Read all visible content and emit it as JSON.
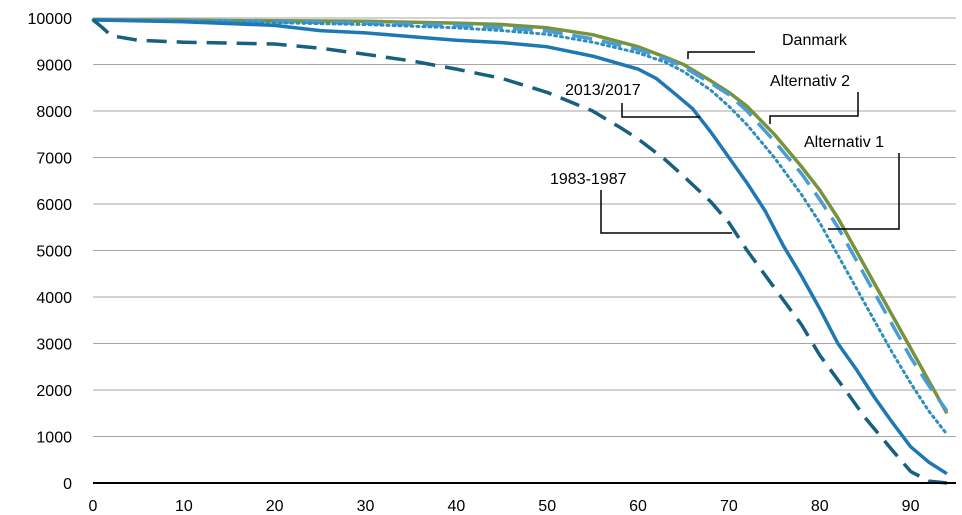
{
  "chart_data": {
    "type": "line",
    "title": "",
    "xlabel": "",
    "ylabel": "",
    "xlim": [
      0,
      95
    ],
    "ylim": [
      0,
      10000
    ],
    "x_ticks": [
      0,
      10,
      20,
      30,
      40,
      50,
      60,
      70,
      80,
      90
    ],
    "y_ticks": [
      0,
      1000,
      2000,
      3000,
      4000,
      5000,
      6000,
      7000,
      8000,
      9000,
      10000
    ],
    "x_tick_labels": [
      "0",
      "10",
      "20",
      "30",
      "40",
      "50",
      "60",
      "70",
      "80",
      "90"
    ],
    "y_tick_labels": [
      "0",
      "1000",
      "2000",
      "3000",
      "4000",
      "5000",
      "6000",
      "7000",
      "8000",
      "9000",
      "10000"
    ],
    "grid": "horizontal",
    "legend": "none",
    "series": [
      {
        "name": "Danmark",
        "color": "#77933c",
        "style": "solid",
        "x": [
          0,
          10,
          20,
          30,
          40,
          45,
          50,
          55,
          60,
          63,
          65,
          68,
          70,
          72,
          75,
          78,
          80,
          82,
          84,
          86,
          88,
          90,
          92,
          94
        ],
        "y": [
          9960,
          9950,
          9940,
          9930,
          9890,
          9860,
          9790,
          9640,
          9380,
          9160,
          9000,
          8650,
          8400,
          8100,
          7500,
          6800,
          6300,
          5700,
          5000,
          4300,
          3600,
          2900,
          2200,
          1500
        ]
      },
      {
        "name": "Alternativ 2",
        "color": "#4a9bd6",
        "style": "dashed",
        "x": [
          0,
          10,
          20,
          30,
          40,
          45,
          50,
          55,
          60,
          63,
          65,
          68,
          70,
          72,
          75,
          78,
          80,
          82,
          84,
          86,
          88,
          90,
          92,
          94
        ],
        "y": [
          9960,
          9940,
          9920,
          9890,
          9840,
          9790,
          9720,
          9550,
          9320,
          9120,
          8950,
          8600,
          8350,
          8000,
          7350,
          6650,
          6100,
          5500,
          4800,
          4100,
          3400,
          2700,
          2100,
          1550
        ]
      },
      {
        "name": "Alternativ 1",
        "color": "#2e8fbd",
        "style": "dotted",
        "x": [
          0,
          10,
          20,
          30,
          40,
          45,
          50,
          55,
          60,
          63,
          65,
          68,
          70,
          72,
          75,
          78,
          80,
          82,
          84,
          86,
          88,
          90,
          92,
          94
        ],
        "y": [
          9960,
          9930,
          9900,
          9860,
          9790,
          9730,
          9650,
          9480,
          9250,
          9050,
          8850,
          8450,
          8100,
          7700,
          7000,
          6200,
          5600,
          4900,
          4200,
          3500,
          2800,
          2150,
          1550,
          1050
        ]
      },
      {
        "name": "2013/2017",
        "color": "#1f78b4",
        "style": "solid",
        "x": [
          0,
          10,
          20,
          25,
          30,
          35,
          40,
          45,
          50,
          55,
          60,
          62,
          64,
          66,
          68,
          70,
          72,
          74,
          76,
          78,
          80,
          82,
          84,
          86,
          88,
          90,
          92,
          94
        ],
        "y": [
          9960,
          9920,
          9840,
          9730,
          9680,
          9600,
          9520,
          9470,
          9380,
          9180,
          8900,
          8700,
          8380,
          8050,
          7550,
          7000,
          6450,
          5850,
          5100,
          4450,
          3750,
          3000,
          2450,
          1850,
          1300,
          780,
          450,
          200
        ]
      },
      {
        "name": "1983-1987",
        "color": "#17607f",
        "style": "dashed",
        "x": [
          0,
          1,
          2,
          5,
          10,
          20,
          25,
          30,
          35,
          40,
          45,
          50,
          55,
          58,
          60,
          63,
          65,
          68,
          70,
          72,
          75,
          78,
          80,
          83,
          85,
          88,
          90,
          92,
          94
        ],
        "y": [
          9960,
          9800,
          9620,
          9520,
          9480,
          9440,
          9350,
          9220,
          9080,
          8900,
          8700,
          8400,
          8000,
          7650,
          7400,
          6950,
          6600,
          6050,
          5600,
          5000,
          4200,
          3400,
          2750,
          1950,
          1400,
          700,
          250,
          40,
          0
        ]
      }
    ],
    "labels": {
      "danmark": "Danmark",
      "alternativ_2": "Alternativ 2",
      "alternativ_1": "Alternativ 1",
      "s2013": "2013/2017",
      "s1983": "1983-1987"
    }
  }
}
